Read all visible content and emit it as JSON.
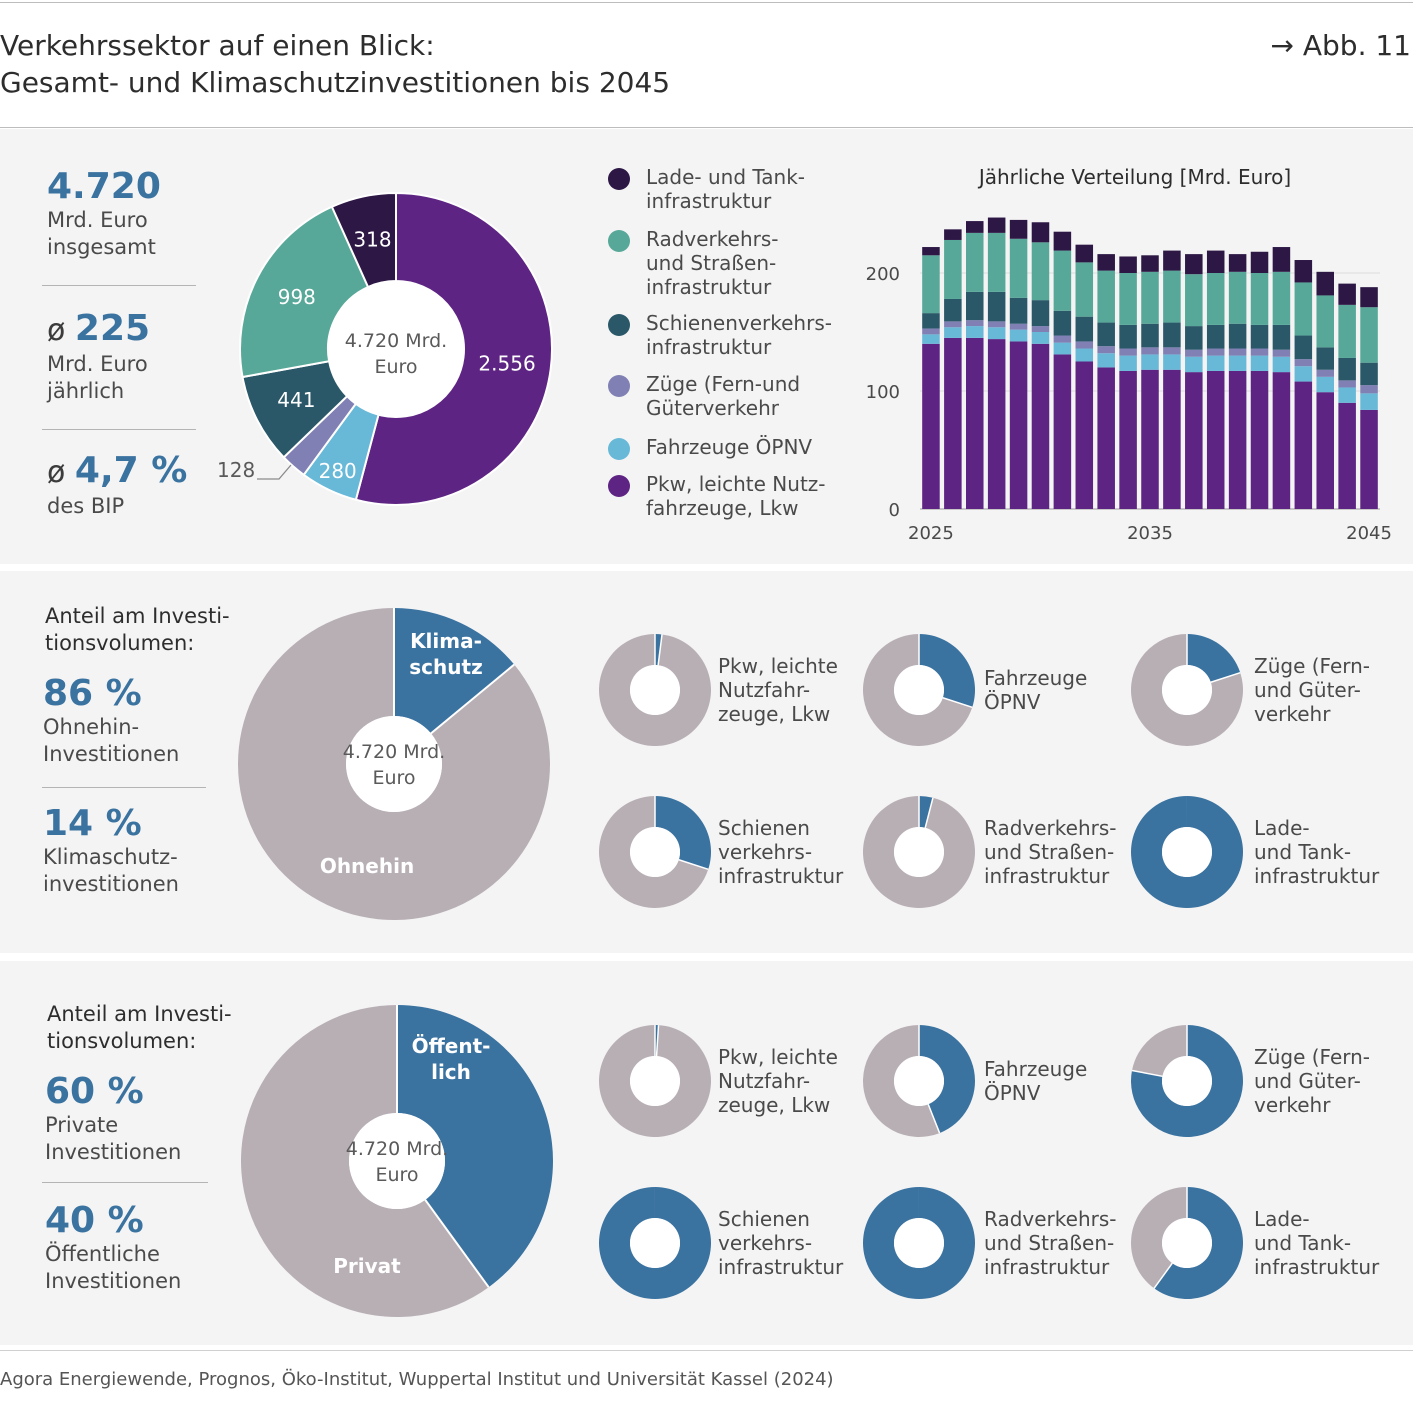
{
  "header": {
    "title_line1": "Verkehrssektor auf einen Blick:",
    "title_line2": "Gesamt- und Klimaschutzinvestitionen bis 2045",
    "figure_ref": "→ Abb. 11"
  },
  "panel1": {
    "stats": [
      {
        "prefix": "",
        "value": "4.720",
        "line1": "Mrd. Euro",
        "line2": "insgesamt"
      },
      {
        "prefix": "ø ",
        "value": "225",
        "line1": "Mrd. Euro",
        "line2": "jährlich"
      },
      {
        "prefix": "ø ",
        "value": "4,7 %",
        "line1": "des BIP",
        "line2": ""
      }
    ],
    "donut_center_line1": "4.720 Mrd.",
    "donut_center_line2": "Euro",
    "legend": [
      {
        "line1": "Lade- und Tank-",
        "line2": "infrastruktur",
        "color": "#2d1745"
      },
      {
        "line1": "Radverkehrs-",
        "line2": "und Straßen-",
        "line3": "infrastruktur",
        "color": "#57a898"
      },
      {
        "line1": "Schienenverkehrs-",
        "line2": "infrastruktur",
        "color": "#2a5868"
      },
      {
        "line1": "Züge (Fern-und",
        "line2": "Güterverkehr",
        "color": "#8080b4"
      },
      {
        "line1": "Fahrzeuge ÖPNV",
        "line2": "",
        "color": "#68b8d8"
      },
      {
        "line1": "Pkw, leichte Nutz-",
        "line2": "fahrzeuge, Lkw",
        "color": "#5e2483"
      }
    ]
  },
  "panel2": {
    "header_line1": "Anteil am Investi-",
    "header_line2": "tionsvolumen:",
    "stats": [
      {
        "value": "86 %",
        "line1": "Ohnehin-",
        "line2": "Investitionen"
      },
      {
        "value": "14 %",
        "line1": "Klimaschutz-",
        "line2": "investitionen"
      }
    ],
    "donut_center_line1": "4.720 Mrd.",
    "donut_center_line2": "Euro",
    "small_donuts": [
      {
        "l1": "Pkw, leichte",
        "l2": "Nutzfahr-",
        "l3": "zeuge, Lkw",
        "share": 0.02
      },
      {
        "l1": "Fahrzeuge",
        "l2": "ÖPNV",
        "l3": "",
        "share": 0.3
      },
      {
        "l1": "Züge (Fern-",
        "l2": "und Güter-",
        "l3": "verkehr",
        "share": 0.2
      },
      {
        "l1": "Schienen",
        "l2": "verkehrs-",
        "l3": "infrastruktur",
        "share": 0.3
      },
      {
        "l1": "Radverkehrs-",
        "l2": "und Straßen-",
        "l3": "infrastruktur",
        "share": 0.04
      },
      {
        "l1": "Lade-",
        "l2": "und Tank-",
        "l3": "infrastruktur",
        "share": 1.0
      }
    ]
  },
  "panel3": {
    "header_line1": "Anteil am Investi-",
    "header_line2": "tionsvolumen:",
    "stats": [
      {
        "value": "60 %",
        "line1": "Private",
        "line2": "Investitionen"
      },
      {
        "value": "40 %",
        "line1": "Öffentliche",
        "line2": "Investitionen"
      }
    ],
    "donut_center_line1": "4.720 Mrd.",
    "donut_center_line2": "Euro",
    "small_donuts": [
      {
        "l1": "Pkw, leichte",
        "l2": "Nutzfahr-",
        "l3": "zeuge, Lkw",
        "share": 0.01
      },
      {
        "l1": "Fahrzeuge",
        "l2": "ÖPNV",
        "l3": "",
        "share": 0.44
      },
      {
        "l1": "Züge (Fern-",
        "l2": "und Güter-",
        "l3": "verkehr",
        "share": 0.78
      },
      {
        "l1": "Schienen",
        "l2": "verkehrs-",
        "l3": "infrastruktur",
        "share": 1.0
      },
      {
        "l1": "Radverkehrs-",
        "l2": "und Straßen-",
        "l3": "infrastruktur",
        "share": 1.0
      },
      {
        "l1": "Lade-",
        "l2": "und Tank-",
        "l3": "infrastruktur",
        "share": 0.6
      }
    ]
  },
  "colors": {
    "pkw": "#5e2483",
    "oepnv": "#68b8d8",
    "zuege": "#8080b4",
    "schiene": "#2a5868",
    "rad": "#57a898",
    "lade": "#2d1745",
    "accent_blue": "#3a72a0",
    "neutral_grey": "#b8afb5"
  },
  "source": "Agora Energiewende, Prognos, Öko-Institut, Wuppertal Institut und Universität Kassel (2024)",
  "chart_data": [
    {
      "type": "pie",
      "variant": "donut",
      "unit": "Mrd. Euro",
      "categories": [
        "Pkw, leichte Nutzfahrzeuge, Lkw",
        "Fahrzeuge ÖPNV",
        "Züge (Fern-und Güterverkehr",
        "Schienenverkehrsinfrastruktur",
        "Radverkehrs- und Straßeninfrastruktur",
        "Lade- und Tankinfrastruktur"
      ],
      "values": [
        2556,
        280,
        128,
        441,
        998,
        318
      ],
      "labels": [
        "2.556",
        "280",
        "128",
        "441",
        "998",
        "318"
      ]
    },
    {
      "type": "bar",
      "stacked": true,
      "title": "Jährliche Verteilung [Mrd. Euro]",
      "x": [
        2025,
        2026,
        2027,
        2028,
        2029,
        2030,
        2031,
        2032,
        2033,
        2034,
        2035,
        2036,
        2037,
        2038,
        2039,
        2040,
        2041,
        2042,
        2043,
        2044,
        2045
      ],
      "xticks": [
        "2025",
        "2035",
        "2045"
      ],
      "yticks": [
        "0",
        "100",
        "200"
      ],
      "ylim": [
        0,
        250
      ],
      "grid": true,
      "series": [
        {
          "name": "Pkw, leichte Nutzfahrzeuge, Lkw",
          "values": [
            140,
            145,
            145,
            144,
            142,
            140,
            131,
            125,
            120,
            117,
            118,
            118,
            116,
            117,
            117,
            117,
            116,
            108,
            99,
            90,
            84
          ]
        },
        {
          "name": "Fahrzeuge ÖPNV",
          "values": [
            8,
            9,
            10,
            10,
            10,
            10,
            10,
            11,
            12,
            13,
            13,
            13,
            13,
            13,
            13,
            13,
            13,
            13,
            13,
            13,
            14
          ]
        },
        {
          "name": "Züge (Fern-und Güterverkehr",
          "values": [
            5,
            5,
            5,
            5,
            5,
            5,
            6,
            6,
            6,
            6,
            6,
            6,
            6,
            6,
            6,
            6,
            6,
            6,
            6,
            6,
            7
          ]
        },
        {
          "name": "Schienenverkehrsinfrastruktur",
          "values": [
            13,
            19,
            24,
            25,
            22,
            22,
            21,
            21,
            20,
            20,
            20,
            21,
            20,
            20,
            21,
            20,
            21,
            20,
            19,
            19,
            19
          ]
        },
        {
          "name": "Radverkehrs- und Straßeninfrastruktur",
          "values": [
            49,
            50,
            50,
            50,
            50,
            49,
            51,
            46,
            44,
            44,
            44,
            44,
            44,
            44,
            44,
            44,
            45,
            45,
            44,
            45,
            47
          ]
        },
        {
          "name": "Lade- und Tankinfrastruktur",
          "values": [
            7,
            9,
            10,
            13,
            16,
            17,
            16,
            15,
            14,
            14,
            14,
            17,
            17,
            19,
            15,
            18,
            21,
            19,
            20,
            18,
            17
          ]
        }
      ]
    },
    {
      "type": "pie",
      "variant": "donut",
      "categories": [
        "Klimaschutz",
        "Ohnehin"
      ],
      "values": [
        14,
        86
      ],
      "unit": "%"
    },
    {
      "type": "pie",
      "variant": "donut",
      "categories": [
        "Öffentlich",
        "Privat"
      ],
      "values": [
        40,
        60
      ],
      "unit": "%"
    }
  ]
}
